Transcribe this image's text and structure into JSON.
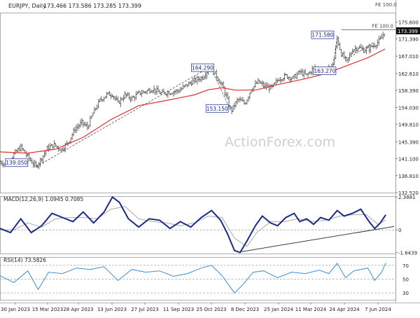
{
  "header": {
    "symbol": "EURJPY, Daily",
    "ohlc": "173.466 173.586 173.285 173.399",
    "fe_top": "FE 100.0",
    "fe_line": "FE 100.0",
    "watermark": "ActionForex.com"
  },
  "macd_panel": {
    "label": "MACD(12,26,9) 1.0945 0.7085",
    "ticks": [
      "2.3881",
      "0",
      "-1.6439"
    ]
  },
  "rsi_panel": {
    "label": "RSI(14) 73.5826",
    "ticks": [
      "70",
      "50",
      "30"
    ]
  },
  "chart_data": [
    {
      "type": "candlestick",
      "title": "EURJPY, Daily",
      "ylim": [
        132.52,
        178.0
      ],
      "y_ticks": [
        132.52,
        136.81,
        141.1,
        145.39,
        149.81,
        154.03,
        158.39,
        162.61,
        167.01,
        171.39,
        175.6
      ],
      "y_tick_labels": [
        "132.520",
        "136.810",
        "141.100",
        "145.390",
        "149.810",
        "154.030",
        "158.390",
        "162.610",
        "167.010",
        "171.390",
        "175.600"
      ],
      "x_tick_labels": [
        "30 Jan 2023",
        "15 Mar 2023",
        "28 Apr 2023",
        "13 Jun 2023",
        "27 Jul 2023",
        "11 Sep 2023",
        "25 Oct 2023",
        "8 Dec 2023",
        "25 Jan 2024",
        "11 Mar 2024",
        "24 Apr 2024",
        "7 Jun 2024"
      ],
      "last_price": 173.399,
      "close_path": [
        [
          0,
          140.3
        ],
        [
          10,
          139.6
        ],
        [
          20,
          142.2
        ],
        [
          30,
          144.0
        ],
        [
          42,
          141.1
        ],
        [
          52,
          139.05
        ],
        [
          60,
          141.3
        ],
        [
          68,
          143.7
        ],
        [
          78,
          144.6
        ],
        [
          88,
          143.4
        ],
        [
          98,
          145.2
        ],
        [
          108,
          148.6
        ],
        [
          118,
          150.2
        ],
        [
          126,
          149.0
        ],
        [
          134,
          152.5
        ],
        [
          144,
          155.8
        ],
        [
          154,
          157.3
        ],
        [
          162,
          157.4
        ],
        [
          170,
          155.1
        ],
        [
          180,
          157.2
        ],
        [
          190,
          156.3
        ],
        [
          200,
          157.6
        ],
        [
          210,
          158.1
        ],
        [
          220,
          158.7
        ],
        [
          232,
          157.6
        ],
        [
          246,
          157.9
        ],
        [
          258,
          158.3
        ],
        [
          270,
          159.8
        ],
        [
          280,
          160.8
        ],
        [
          292,
          161.7
        ],
        [
          303,
          164.29
        ],
        [
          312,
          162.0
        ],
        [
          322,
          158.9
        ],
        [
          333,
          153.15
        ],
        [
          343,
          156.1
        ],
        [
          353,
          155.0
        ],
        [
          362,
          158.6
        ],
        [
          372,
          160.5
        ],
        [
          382,
          159.3
        ],
        [
          392,
          159.0
        ],
        [
          402,
          161.3
        ],
        [
          412,
          162.0
        ],
        [
          422,
          161.4
        ],
        [
          432,
          163.0
        ],
        [
          442,
          162.1
        ],
        [
          452,
          164.0
        ],
        [
          462,
          163.3
        ],
        [
          473,
          163.7
        ],
        [
          481,
          165.2
        ],
        [
          486,
          171.58
        ],
        [
          492,
          167.6
        ],
        [
          500,
          165.6
        ],
        [
          508,
          168.6
        ],
        [
          516,
          169.3
        ],
        [
          524,
          168.5
        ],
        [
          532,
          169.0
        ],
        [
          540,
          169.9
        ],
        [
          548,
          171.1
        ],
        [
          555,
          173.399
        ]
      ],
      "ma_path": [
        [
          0,
          142.8
        ],
        [
          40,
          142.5
        ],
        [
          80,
          143.5
        ],
        [
          120,
          146.5
        ],
        [
          160,
          151.0
        ],
        [
          200,
          154.5
        ],
        [
          240,
          155.8
        ],
        [
          280,
          157.2
        ],
        [
          300,
          158.5
        ],
        [
          320,
          159.0
        ],
        [
          340,
          158.4
        ],
        [
          370,
          158.5
        ],
        [
          400,
          159.8
        ],
        [
          440,
          161.3
        ],
        [
          470,
          162.6
        ],
        [
          500,
          164.6
        ],
        [
          530,
          166.6
        ],
        [
          555,
          168.8
        ]
      ],
      "labels": [
        {
          "text": "139.050",
          "value": 139.05
        },
        {
          "text": "164.290",
          "value": 164.29
        },
        {
          "text": "153.150",
          "value": 153.15
        },
        {
          "text": "171.580",
          "value": 171.58
        },
        {
          "text": "163.270",
          "value": 163.27
        }
      ]
    },
    {
      "type": "line",
      "title": "MACD(12,26,9) 1.0945 0.7085",
      "ylim": [
        -1.72,
        2.45
      ],
      "macd": [
        [
          0,
          0.1
        ],
        [
          15,
          -0.2
        ],
        [
          30,
          0.8
        ],
        [
          45,
          -0.2
        ],
        [
          60,
          0.3
        ],
        [
          75,
          1.2
        ],
        [
          90,
          0.9
        ],
        [
          105,
          0.6
        ],
        [
          120,
          1.3
        ],
        [
          135,
          0.5
        ],
        [
          150,
          1.3
        ],
        [
          162,
          2.38
        ],
        [
          172,
          2.0
        ],
        [
          185,
          0.8
        ],
        [
          200,
          0.2
        ],
        [
          215,
          0.8
        ],
        [
          230,
          0.7
        ],
        [
          245,
          0.1
        ],
        [
          260,
          0.6
        ],
        [
          275,
          0.2
        ],
        [
          290,
          0.9
        ],
        [
          305,
          1.4
        ],
        [
          318,
          0.7
        ],
        [
          328,
          -0.3
        ],
        [
          338,
          -1.5
        ],
        [
          346,
          -1.64
        ],
        [
          356,
          -0.8
        ],
        [
          368,
          0.3
        ],
        [
          378,
          1.0
        ],
        [
          390,
          0.5
        ],
        [
          400,
          0.3
        ],
        [
          412,
          0.9
        ],
        [
          424,
          1.2
        ],
        [
          432,
          0.6
        ],
        [
          442,
          0.8
        ],
        [
          452,
          0.4
        ],
        [
          462,
          0.9
        ],
        [
          474,
          0.7
        ],
        [
          486,
          1.4
        ],
        [
          496,
          1.0
        ],
        [
          508,
          1.2
        ],
        [
          520,
          1.5
        ],
        [
          532,
          0.6
        ],
        [
          540,
          0.1
        ],
        [
          548,
          0.5
        ],
        [
          556,
          1.09
        ]
      ],
      "signal": [
        [
          0,
          0.0
        ],
        [
          20,
          0.0
        ],
        [
          40,
          0.5
        ],
        [
          60,
          0.2
        ],
        [
          80,
          0.8
        ],
        [
          100,
          0.9
        ],
        [
          120,
          0.9
        ],
        [
          140,
          0.8
        ],
        [
          160,
          1.5
        ],
        [
          180,
          1.7
        ],
        [
          200,
          0.8
        ],
        [
          220,
          0.6
        ],
        [
          240,
          0.5
        ],
        [
          260,
          0.3
        ],
        [
          280,
          0.5
        ],
        [
          300,
          1.0
        ],
        [
          320,
          0.9
        ],
        [
          338,
          -0.6
        ],
        [
          356,
          -1.2
        ],
        [
          370,
          -0.2
        ],
        [
          390,
          0.6
        ],
        [
          410,
          0.6
        ],
        [
          430,
          0.8
        ],
        [
          450,
          0.6
        ],
        [
          470,
          0.7
        ],
        [
          490,
          1.0
        ],
        [
          510,
          1.1
        ],
        [
          528,
          1.1
        ],
        [
          545,
          0.4
        ],
        [
          556,
          0.71
        ]
      ],
      "trendline": [
        [
          346,
          -1.6
        ],
        [
          568,
          0.25
        ]
      ]
    },
    {
      "type": "line",
      "title": "RSI(14) 73.5826",
      "ylim": [
        20,
        82
      ],
      "rsi": [
        [
          0,
          55
        ],
        [
          20,
          45
        ],
        [
          40,
          62
        ],
        [
          55,
          35
        ],
        [
          70,
          60
        ],
        [
          90,
          58
        ],
        [
          110,
          66
        ],
        [
          130,
          64
        ],
        [
          150,
          68
        ],
        [
          170,
          48
        ],
        [
          190,
          64
        ],
        [
          210,
          60
        ],
        [
          230,
          62
        ],
        [
          250,
          54
        ],
        [
          270,
          58
        ],
        [
          290,
          66
        ],
        [
          305,
          70
        ],
        [
          320,
          55
        ],
        [
          338,
          30
        ],
        [
          350,
          42
        ],
        [
          365,
          60
        ],
        [
          380,
          62
        ],
        [
          400,
          52
        ],
        [
          420,
          60
        ],
        [
          440,
          58
        ],
        [
          460,
          63
        ],
        [
          474,
          58
        ],
        [
          486,
          73
        ],
        [
          498,
          52
        ],
        [
          510,
          62
        ],
        [
          530,
          66
        ],
        [
          540,
          48
        ],
        [
          550,
          60
        ],
        [
          556,
          73.58
        ]
      ]
    }
  ]
}
